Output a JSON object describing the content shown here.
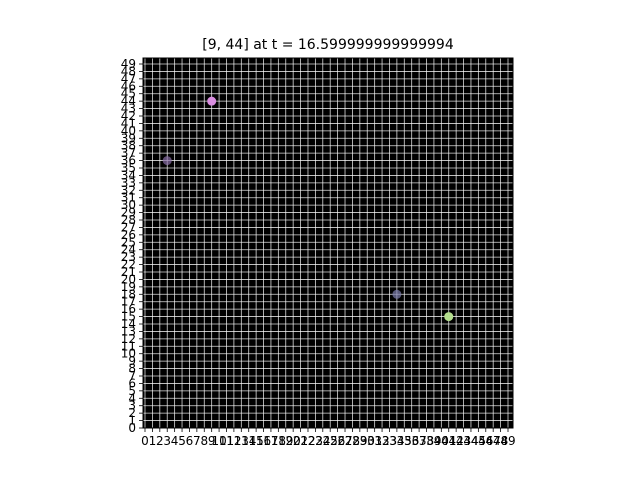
{
  "title": "[9, 44] at t = 16.599999999999994",
  "chart_data": {
    "type": "scatter",
    "title": "[9, 44] at t = 16.599999999999994",
    "xlabel": "",
    "ylabel": "",
    "xlim": [
      0,
      49
    ],
    "ylim": [
      0,
      49
    ],
    "x_ticks": [
      0,
      1,
      2,
      3,
      4,
      5,
      6,
      7,
      8,
      9,
      10,
      11,
      12,
      13,
      14,
      15,
      16,
      17,
      18,
      19,
      20,
      21,
      22,
      23,
      24,
      25,
      26,
      27,
      28,
      29,
      30,
      31,
      32,
      33,
      34,
      35,
      36,
      37,
      38,
      39,
      40,
      41,
      42,
      43,
      44,
      45,
      46,
      47,
      48,
      49
    ],
    "y_ticks": [
      0,
      1,
      2,
      3,
      4,
      5,
      6,
      7,
      8,
      9,
      10,
      11,
      12,
      13,
      14,
      15,
      16,
      17,
      18,
      19,
      20,
      21,
      22,
      23,
      24,
      25,
      26,
      27,
      28,
      29,
      30,
      31,
      32,
      33,
      34,
      35,
      36,
      37,
      38,
      39,
      40,
      41,
      42,
      43,
      44,
      45,
      46,
      47,
      48,
      49
    ],
    "grid": true,
    "background_color": "#000000",
    "grid_color": "#ffffff",
    "points": [
      {
        "x": 9,
        "y": 44,
        "color": "#d98ee0",
        "alpha": 1.0
      },
      {
        "x": 3,
        "y": 36,
        "color": "#8a6fa8",
        "alpha": 0.7
      },
      {
        "x": 34,
        "y": 18,
        "color": "#7d7fae",
        "alpha": 0.7
      },
      {
        "x": 41,
        "y": 15,
        "color": "#b5df8e",
        "alpha": 1.0
      }
    ]
  }
}
